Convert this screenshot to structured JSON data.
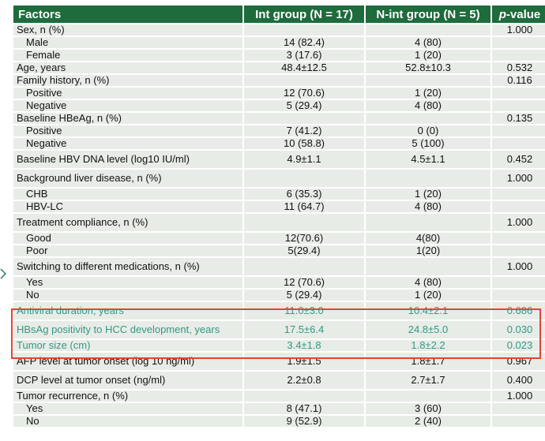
{
  "header": {
    "factors": "Factors",
    "int_group": "Int group (N = 17)",
    "nint_group": "N-int group (N = 5)",
    "p_prefix": "p",
    "p_suffix": "-value"
  },
  "rows": [
    {
      "factor": "Sex, n (%)",
      "int": "",
      "nint": "",
      "p": "1.000"
    },
    {
      "factor": "Male",
      "int": "14 (82.4)",
      "nint": "4 (80)",
      "p": ""
    },
    {
      "factor": "Female",
      "int": "3 (17.6)",
      "nint": "1 (20)",
      "p": ""
    },
    {
      "factor": "Age, years",
      "int": "48.4±12.5",
      "nint": "52.8±10.3",
      "p": "0.532"
    },
    {
      "factor": "Family history, n (%)",
      "int": "",
      "nint": "",
      "p": "0.116"
    },
    {
      "factor": "Positive",
      "int": "12 (70.6)",
      "nint": "1 (20)",
      "p": ""
    },
    {
      "factor": "Negative",
      "int": "5 (29.4)",
      "nint": "4 (80)",
      "p": ""
    },
    {
      "factor": "Baseline HBeAg, n (%)",
      "int": "",
      "nint": "",
      "p": "0.135"
    },
    {
      "factor": "Positive",
      "int": "7 (41.2)",
      "nint": "0 (0)",
      "p": ""
    },
    {
      "factor": "Negative",
      "int": "10 (58.8)",
      "nint": "5 (100)",
      "p": ""
    },
    {
      "factor": "Baseline HBV DNA level (log10 IU/ml)",
      "int": "4.9±1.1",
      "nint": "4.5±1.1",
      "p": "0.452"
    },
    {
      "factor": "Background liver disease, n (%)",
      "int": "",
      "nint": "",
      "p": "1.000"
    },
    {
      "factor": "CHB",
      "int": "6 (35.3)",
      "nint": "1 (20)",
      "p": ""
    },
    {
      "factor": "HBV-LC",
      "int": "11 (64.7)",
      "nint": "4 (80)",
      "p": ""
    },
    {
      "factor": "Treatment compliance, n (%)",
      "int": "",
      "nint": "",
      "p": "1.000"
    },
    {
      "factor": "Good",
      "int": "12(70.6)",
      "nint": "4(80)",
      "p": ""
    },
    {
      "factor": "Poor",
      "int": "5(29.4)",
      "nint": "1(20)",
      "p": ""
    },
    {
      "factor": "Switching to different medications, n (%)",
      "int": "",
      "nint": "",
      "p": "1.000"
    },
    {
      "factor": "Yes",
      "int": "12 (70.6)",
      "nint": "4 (80)",
      "p": ""
    },
    {
      "factor": "No",
      "int": "5 (29.4)",
      "nint": "1 (20)",
      "p": ""
    },
    {
      "factor": "Antiviral duration, years",
      "int": "11.0±3.0",
      "nint": "10.4±2.1",
      "p": "0.686"
    },
    {
      "factor": "HBsAg positivity to HCC development, years",
      "int": "17.5±6.4",
      "nint": "24.8±5.0",
      "p": "0.030"
    },
    {
      "factor": "Tumor size (cm)",
      "int": "3.4±1.8",
      "nint": "1.8±2.2",
      "p": "0.023"
    },
    {
      "factor": "AFP level at tumor onset (log 10 ng/ml)",
      "int": "1.9±1.5",
      "nint": "1.8±1.7",
      "p": "0.967"
    },
    {
      "factor": "DCP level at tumor onset (ng/ml)",
      "int": "2.2±0.8",
      "nint": "2.7±1.7",
      "p": "0.400"
    },
    {
      "factor": "Tumor recurrence, n (%)",
      "int": "",
      "nint": "",
      "p": "1.000"
    },
    {
      "factor": "Yes",
      "int": "8 (47.1)",
      "nint": "3 (60)",
      "p": ""
    },
    {
      "factor": "No",
      "int": "9 (52.9)",
      "nint": "2 (40)",
      "p": ""
    }
  ],
  "colors": {
    "header_bg": "#1e6b3c",
    "row_bg": "#e8ece7",
    "highlight_text": "#2f9a83",
    "highlight_border": "#e0472f"
  }
}
